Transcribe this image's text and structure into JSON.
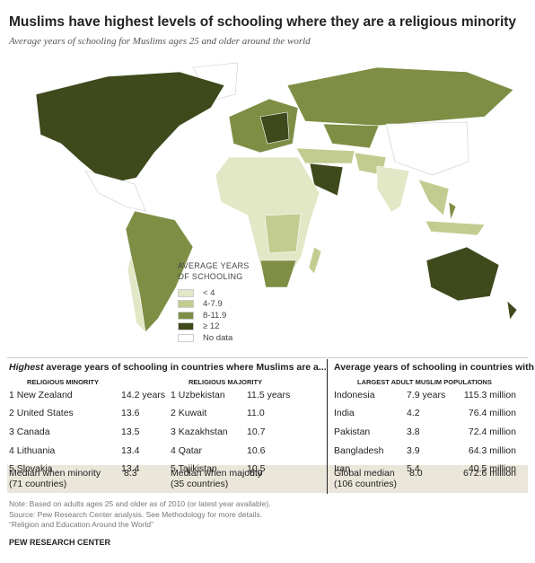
{
  "header": {
    "title": "Muslims have highest levels of schooling where they are a religious minority",
    "subtitle": "Average years of schooling for Muslims ages 25 and older around the world"
  },
  "legend": {
    "title": "AVERAGE YEARS OF SCHOOLING",
    "items": [
      {
        "label": "< 4",
        "color": "#e2e7c6"
      },
      {
        "label": "4-7.9",
        "color": "#c3cc90"
      },
      {
        "label": "8-11.9",
        "color": "#7e8e45"
      },
      {
        "label": "≥ 12",
        "color": "#3e4a1c"
      },
      {
        "label": "No data",
        "color": "#ffffff"
      }
    ]
  },
  "left_table": {
    "title_emphasis": "Highest",
    "title_rest": " average years of schooling in countries where Muslims are a...",
    "minority": {
      "header": "RELIGIOUS MINORITY",
      "rows": [
        [
          "1 New Zealand",
          "14.2 years"
        ],
        [
          "2 United States",
          "13.6"
        ],
        [
          "3 Canada",
          "13.5"
        ],
        [
          "4 Lithuania",
          "13.4"
        ],
        [
          "5 Slovakia",
          "13.4"
        ]
      ],
      "median": [
        "Median when minority",
        "(71 countries)",
        "8.3"
      ]
    },
    "majority": {
      "header": "RELIGIOUS MAJORITY",
      "rows": [
        [
          "1 Uzbekistan",
          "11.5 years"
        ],
        [
          "2 Kuwait",
          "11.0"
        ],
        [
          "3 Kazakhstan",
          "10.7"
        ],
        [
          "4 Qatar",
          "10.6"
        ],
        [
          "5 Tajikistan",
          "10.5"
        ]
      ],
      "median": [
        "Median when majority",
        "(35 countries)",
        "6.0"
      ]
    }
  },
  "right_table": {
    "title": "Average years of schooling in countries with",
    "header": "LARGEST ADULT MUSLIM POPULATIONS",
    "rows": [
      [
        "Indonesia",
        "7.9 years",
        "115.3 million"
      ],
      [
        "India",
        "4.2",
        "76.4 million"
      ],
      [
        "Pakistan",
        "3.8",
        "72.4 million"
      ],
      [
        "Bangladesh",
        "3.9",
        "64.3 million"
      ],
      [
        "Iran",
        "5.4",
        "40.5 million"
      ]
    ],
    "median": [
      "Global median",
      "(106 countries)",
      "8.0",
      "672.6 million"
    ]
  },
  "notes": [
    "Note: Based on adults ages 25 and older as of 2010 (or latest year available).",
    "Source: Pew Research Center analysis. See Methodology for more details.",
    "“Religion and Education Around the World”"
  ],
  "source": "PEW RESEARCH CENTER"
}
